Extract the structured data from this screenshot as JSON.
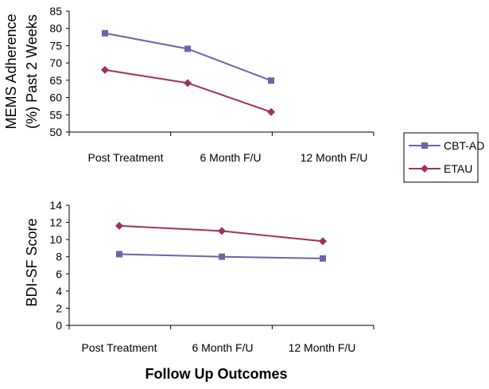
{
  "figure": {
    "x_title": "Follow Up Outcomes"
  },
  "legend": {
    "placement": "right",
    "entries": [
      {
        "name": "CBT-AD",
        "color": "#6666aa",
        "marker": "square"
      },
      {
        "name": "ETAU",
        "color": "#a03060",
        "marker": "diamond"
      }
    ]
  },
  "chart_data": [
    {
      "type": "line",
      "ylabel_lines": [
        "MEMS Adherence",
        "(%) Past 2 Weeks"
      ],
      "categories": [
        "Post Treatment",
        "6 Month F/U",
        "12 Month F/U"
      ],
      "ylim": [
        50,
        85
      ],
      "yticks": [
        50,
        55,
        60,
        65,
        70,
        75,
        80,
        85
      ],
      "grid": false,
      "series": [
        {
          "name": "CBT-AD",
          "values": [
            78.6,
            74.1,
            64.9
          ]
        },
        {
          "name": "ETAU",
          "values": [
            68.0,
            64.2,
            55.8
          ]
        }
      ]
    },
    {
      "type": "line",
      "ylabel_lines": [
        "BDI-SF Score"
      ],
      "categories": [
        "Post Treatment",
        "6 Month F/U",
        "12 Month F/U"
      ],
      "ylim": [
        0,
        14
      ],
      "yticks": [
        0,
        2,
        4,
        6,
        8,
        10,
        12,
        14
      ],
      "grid": false,
      "series": [
        {
          "name": "CBT-AD",
          "values": [
            8.3,
            8.0,
            7.8
          ]
        },
        {
          "name": "ETAU",
          "values": [
            11.6,
            11.0,
            9.8
          ]
        }
      ]
    }
  ]
}
